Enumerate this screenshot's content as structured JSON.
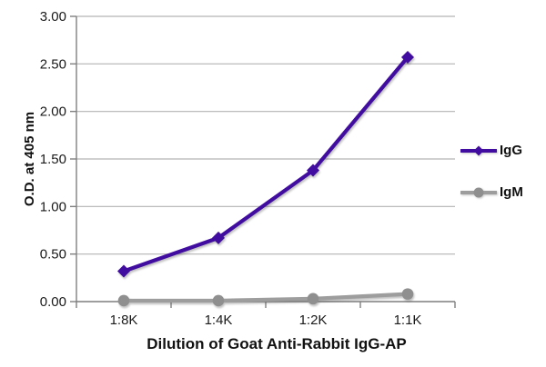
{
  "chart_data": {
    "type": "line",
    "title": "",
    "categories": [
      "1:8K",
      "1:4K",
      "1:2K",
      "1:1K"
    ],
    "series": [
      {
        "name": "IgG",
        "values": [
          0.32,
          0.67,
          1.38,
          2.57
        ],
        "color": "#410da0",
        "marker": "diamond"
      },
      {
        "name": "IgM",
        "values": [
          0.01,
          0.01,
          0.03,
          0.08
        ],
        "color": "#9d9d9d",
        "marker_color": "#8f8f8f",
        "marker": "circle"
      }
    ],
    "xlabel": "Dilution of Goat Anti-Rabbit IgG-AP",
    "ylabel": "O.D. at 405 nm",
    "ylim": [
      0,
      3.0
    ],
    "ytick_step": 0.5,
    "ytick_labels": [
      "0.00",
      "0.50",
      "1.00",
      "1.50",
      "2.00",
      "2.50",
      "3.00"
    ],
    "grid": true,
    "legend_position": "right",
    "colors": {
      "axis": "#7f7f7f",
      "gridline": "#b3b3b3",
      "text": "#1a1a1a"
    }
  }
}
